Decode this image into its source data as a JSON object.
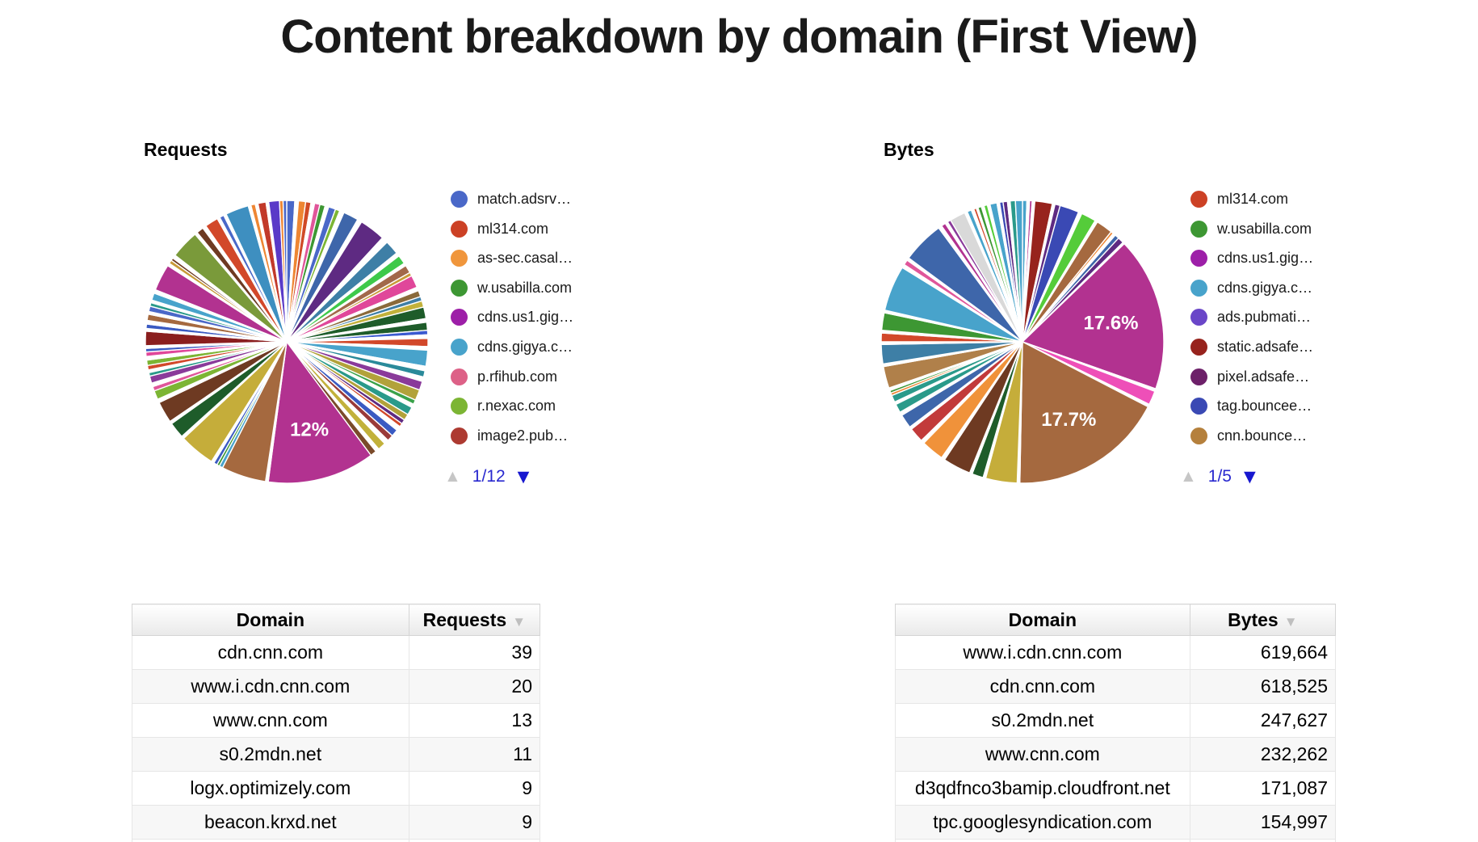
{
  "title": "Content breakdown by domain (First View)",
  "chart_data": [
    {
      "type": "pie",
      "title": "Requests",
      "legend_position": "right",
      "legend_pager": {
        "up": "▲",
        "page": "1/12",
        "down": "▼"
      },
      "legend": [
        {
          "label": "match.adsrv…",
          "color": "#4a68c8"
        },
        {
          "label": "ml314.com",
          "color": "#cc4125"
        },
        {
          "label": "as-sec.casal…",
          "color": "#f0963c"
        },
        {
          "label": "w.usabilla.com",
          "color": "#3d9733"
        },
        {
          "label": "cdns.us1.gig…",
          "color": "#9d1fa8"
        },
        {
          "label": "cdns.gigya.c…",
          "color": "#48a3cb"
        },
        {
          "label": "p.rfihub.com",
          "color": "#dd6187"
        },
        {
          "label": "r.nexac.com",
          "color": "#7cb534"
        },
        {
          "label": "image2.pub…",
          "color": "#ad3a31"
        }
      ],
      "labeled_slices": [
        {
          "label": "12%",
          "value_pct": 12
        }
      ],
      "slices": [
        [
          0.9,
          "#4a68c8"
        ],
        [
          0.4,
          "#ffffff"
        ],
        [
          0.8,
          "#ee8633"
        ],
        [
          0.6,
          "#d04a26"
        ],
        [
          0.4,
          "#ffffff"
        ],
        [
          0.6,
          "#e0569a"
        ],
        [
          0.6,
          "#3d9733"
        ],
        [
          0.4,
          "#ffffff"
        ],
        [
          0.8,
          "#4a68c8"
        ],
        [
          0.5,
          "#7cb534"
        ],
        [
          0.5,
          "#ffffff"
        ],
        [
          1.7,
          "#3e66aa"
        ],
        [
          0.5,
          "#ffffff"
        ],
        [
          2.9,
          "#5e2a82"
        ],
        [
          0.7,
          "#ffffff"
        ],
        [
          1.6,
          "#3e7fa6"
        ],
        [
          0.4,
          "#ffffff"
        ],
        [
          1.0,
          "#3ec94a"
        ],
        [
          0.3,
          "#ffffff"
        ],
        [
          0.9,
          "#a2684a"
        ],
        [
          0.4,
          "#c89a38"
        ],
        [
          1.4,
          "#e0479a"
        ],
        [
          0.4,
          "#ffffff"
        ],
        [
          0.7,
          "#8a6a3a"
        ],
        [
          0.5,
          "#3e7fa6"
        ],
        [
          0.7,
          "#c2b13b"
        ],
        [
          1.3,
          "#1e5c2a"
        ],
        [
          0.4,
          "#ffffff"
        ],
        [
          0.9,
          "#1e5c2a"
        ],
        [
          0.5,
          "#3a5ad0"
        ],
        [
          0.4,
          "#ffffff"
        ],
        [
          0.9,
          "#d2482a"
        ],
        [
          0.4,
          "#ffffff"
        ],
        [
          1.8,
          "#48a3cb"
        ],
        [
          0.5,
          "#ffffff"
        ],
        [
          0.7,
          "#2a8a9a"
        ],
        [
          0.5,
          "#ffffff"
        ],
        [
          1.0,
          "#8a3a9a"
        ],
        [
          1.2,
          "#b2a23a"
        ],
        [
          0.5,
          "#3aa24a"
        ],
        [
          0.4,
          "#ffffff"
        ],
        [
          0.9,
          "#2a9a8a"
        ],
        [
          0.7,
          "#b2a23a"
        ],
        [
          0.5,
          "#5e2a82"
        ],
        [
          0.4,
          "#d2482a"
        ],
        [
          0.5,
          "#ffffff"
        ],
        [
          0.8,
          "#3a5ac2"
        ],
        [
          0.7,
          "#9a3a3a"
        ],
        [
          0.5,
          "#ffffff"
        ],
        [
          0.9,
          "#c2b13b"
        ],
        [
          0.4,
          "#ffffff"
        ],
        [
          0.7,
          "#7a4a2a"
        ],
        [
          12.0,
          "#b23290",
          "12%"
        ],
        [
          0.3,
          "#ffffff"
        ],
        [
          5.0,
          "#a5693f"
        ],
        [
          0.4,
          "#48a3cb"
        ],
        [
          0.3,
          "#3d9733"
        ],
        [
          0.4,
          "#3a5ac2"
        ],
        [
          0.3,
          "#ffffff"
        ],
        [
          4.0,
          "#c5ad3a"
        ],
        [
          0.3,
          "#ffffff"
        ],
        [
          1.8,
          "#1e5c2a"
        ],
        [
          0.3,
          "#ffffff"
        ],
        [
          2.4,
          "#6e3a22"
        ],
        [
          0.4,
          "#ffffff"
        ],
        [
          1.0,
          "#7cb534"
        ],
        [
          0.5,
          "#e0569a"
        ],
        [
          0.4,
          "#ffffff"
        ],
        [
          0.8,
          "#8a3a9a"
        ],
        [
          0.4,
          "#2a9a8a"
        ],
        [
          0.3,
          "#ffffff"
        ],
        [
          0.5,
          "#d2482a"
        ],
        [
          0.6,
          "#7cb534"
        ],
        [
          0.4,
          "#ffffff"
        ],
        [
          0.5,
          "#e0479a"
        ],
        [
          0.4,
          "#3a5ac2"
        ],
        [
          0.3,
          "#ffffff"
        ],
        [
          1.6,
          "#8a1e1e"
        ],
        [
          0.3,
          "#ffffff"
        ],
        [
          0.5,
          "#3a5ac2"
        ],
        [
          0.4,
          "#ffffff"
        ],
        [
          0.7,
          "#a5693f"
        ],
        [
          0.3,
          "#ffffff"
        ],
        [
          0.6,
          "#4a68c8"
        ],
        [
          0.4,
          "#2a9a8a"
        ],
        [
          0.3,
          "#ffffff"
        ],
        [
          0.8,
          "#48a3cb"
        ],
        [
          0.4,
          "#ffffff"
        ],
        [
          3.0,
          "#b23290"
        ],
        [
          0.3,
          "#ffffff"
        ],
        [
          0.4,
          "#c89a38"
        ],
        [
          0.3,
          "#6e3a22"
        ],
        [
          0.4,
          "#ffffff"
        ],
        [
          3.2,
          "#7a9a3a"
        ],
        [
          0.3,
          "#ffffff"
        ],
        [
          0.8,
          "#6e3a22"
        ],
        [
          0.4,
          "#ffffff"
        ],
        [
          1.5,
          "#d2482a"
        ],
        [
          0.3,
          "#ffffff"
        ],
        [
          0.5,
          "#4a68c8"
        ],
        [
          0.3,
          "#ffffff"
        ],
        [
          2.6,
          "#3e8fc0"
        ],
        [
          0.3,
          "#ffffff"
        ],
        [
          0.5,
          "#ee8633"
        ],
        [
          0.3,
          "#ffffff"
        ],
        [
          0.9,
          "#c23a2a"
        ],
        [
          0.3,
          "#ffffff"
        ],
        [
          1.2,
          "#5a3ac8"
        ],
        [
          0.4,
          "#ee8633"
        ],
        [
          0.4,
          "#4a68c8"
        ]
      ]
    },
    {
      "type": "pie",
      "title": "Bytes",
      "legend_position": "right",
      "legend_pager": {
        "up": "▲",
        "page": "1/5",
        "down": "▼"
      },
      "legend": [
        {
          "label": "ml314.com",
          "color": "#cc4125"
        },
        {
          "label": "w.usabilla.com",
          "color": "#3d9733"
        },
        {
          "label": "cdns.us1.gig…",
          "color": "#9d1fa8"
        },
        {
          "label": "cdns.gigya.c…",
          "color": "#48a3cb"
        },
        {
          "label": "ads.pubmati…",
          "color": "#6a46c8"
        },
        {
          "label": "static.adsafe…",
          "color": "#97231d"
        },
        {
          "label": "pixel.adsafe…",
          "color": "#6d2069"
        },
        {
          "label": "tag.bouncee…",
          "color": "#3a49b4"
        },
        {
          "label": "cnn.bounce…",
          "color": "#b5803c"
        }
      ],
      "labeled_slices": [
        {
          "label": "17.6%",
          "value_pct": 17.6
        },
        {
          "label": "17.7%",
          "value_pct": 17.7
        }
      ],
      "slices": [
        [
          0.5,
          "#48a3cb"
        ],
        [
          0.3,
          "#ffffff"
        ],
        [
          0.3,
          "#b23290"
        ],
        [
          0.3,
          "#ffffff"
        ],
        [
          2.0,
          "#97231d"
        ],
        [
          0.3,
          "#ffffff"
        ],
        [
          0.6,
          "#5e2a82"
        ],
        [
          2.2,
          "#3a49b4"
        ],
        [
          0.4,
          "#ffffff"
        ],
        [
          1.7,
          "#55cc3a"
        ],
        [
          0.3,
          "#ffffff"
        ],
        [
          1.9,
          "#a5693f"
        ],
        [
          0.3,
          "#ee8633"
        ],
        [
          0.3,
          "#ffffff"
        ],
        [
          0.5,
          "#3e66aa"
        ],
        [
          0.7,
          "#5e2a82"
        ],
        [
          0.2,
          "#ffffff"
        ],
        [
          17.6,
          "#b23290",
          "17.6%"
        ],
        [
          0.3,
          "#ffffff"
        ],
        [
          1.6,
          "#ee4fb8"
        ],
        [
          0.3,
          "#ffffff"
        ],
        [
          17.7,
          "#a5693f",
          "17.7%"
        ],
        [
          0.3,
          "#ffffff"
        ],
        [
          3.6,
          "#c5ad3a"
        ],
        [
          0.3,
          "#ffffff"
        ],
        [
          1.3,
          "#1e5c2a"
        ],
        [
          0.3,
          "#ffffff"
        ],
        [
          3.2,
          "#6e3a22"
        ],
        [
          0.4,
          "#ffffff"
        ],
        [
          2.6,
          "#f0923a"
        ],
        [
          0.4,
          "#ffffff"
        ],
        [
          1.7,
          "#c23a3a"
        ],
        [
          0.3,
          "#ffffff"
        ],
        [
          1.6,
          "#3e66aa"
        ],
        [
          0.4,
          "#ffffff"
        ],
        [
          1.0,
          "#2a9a8a"
        ],
        [
          0.3,
          "#ffffff"
        ],
        [
          0.8,
          "#2a9a8a"
        ],
        [
          0.3,
          "#ee8633"
        ],
        [
          0.3,
          "#3d9733"
        ],
        [
          0.3,
          "#ffffff"
        ],
        [
          2.5,
          "#b0804a"
        ],
        [
          0.3,
          "#ffffff"
        ],
        [
          2.2,
          "#3e7fa6"
        ],
        [
          0.3,
          "#ffffff"
        ],
        [
          1.0,
          "#d2482a"
        ],
        [
          0.3,
          "#ffffff"
        ],
        [
          2.0,
          "#3d9733"
        ],
        [
          0.3,
          "#ffffff"
        ],
        [
          5.2,
          "#48a3cb"
        ],
        [
          0.4,
          "#ffffff"
        ],
        [
          0.6,
          "#e0569a"
        ],
        [
          0.3,
          "#ffffff"
        ],
        [
          4.8,
          "#3e66aa"
        ],
        [
          0.4,
          "#ffffff"
        ],
        [
          0.5,
          "#b23290"
        ],
        [
          0.3,
          "#ffffff"
        ],
        [
          0.4,
          "#8a3a9a"
        ],
        [
          1.8,
          "#d9d9d9"
        ],
        [
          0.3,
          "#ffffff"
        ],
        [
          0.5,
          "#48a3cb"
        ],
        [
          0.3,
          "#ffffff"
        ],
        [
          0.3,
          "#d2482a"
        ],
        [
          0.2,
          "#ffffff"
        ],
        [
          0.4,
          "#3d9733"
        ],
        [
          0.3,
          "#ffffff"
        ],
        [
          0.4,
          "#55cc3a"
        ],
        [
          0.3,
          "#ffffff"
        ],
        [
          0.8,
          "#48a3cb"
        ],
        [
          0.3,
          "#ffffff"
        ],
        [
          0.4,
          "#3a49b4"
        ],
        [
          0.5,
          "#5e2a82"
        ],
        [
          0.3,
          "#ffffff"
        ],
        [
          0.6,
          "#2a9a8a"
        ],
        [
          0.8,
          "#48a3cb"
        ]
      ]
    }
  ],
  "tables": [
    {
      "headers": [
        "Domain",
        "Requests"
      ],
      "sort_column": 1,
      "sort_arrow": "▼",
      "rows": [
        [
          "cdn.cnn.com",
          "39"
        ],
        [
          "www.i.cdn.cnn.com",
          "20"
        ],
        [
          "www.cnn.com",
          "13"
        ],
        [
          "s0.2mdn.net",
          "11"
        ],
        [
          "logx.optimizely.com",
          "9"
        ],
        [
          "beacon.krxd.net",
          "9"
        ]
      ]
    },
    {
      "headers": [
        "Domain",
        "Bytes"
      ],
      "sort_column": 1,
      "sort_arrow": "▼",
      "rows": [
        [
          "www.i.cdn.cnn.com",
          "619,664"
        ],
        [
          "cdn.cnn.com",
          "618,525"
        ],
        [
          "s0.2mdn.net",
          "247,627"
        ],
        [
          "www.cnn.com",
          "232,262"
        ],
        [
          "d3qdfnco3bamip.cloudfront.net",
          "171,087"
        ],
        [
          "tpc.googlesyndication.com",
          "154,997"
        ]
      ]
    }
  ]
}
